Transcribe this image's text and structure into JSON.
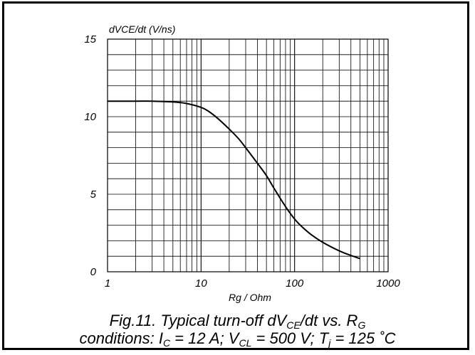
{
  "chart_data": {
    "type": "line",
    "title": "",
    "ylabel": "dVCE/dt (V/ns)",
    "xlabel": "Rg / Ohm",
    "x_scale": "log",
    "xlim": [
      1,
      1000
    ],
    "ylim": [
      0,
      15
    ],
    "x_ticks": [
      1,
      10,
      100,
      1000
    ],
    "x_tick_labels": [
      "1",
      "10",
      "100",
      "1000"
    ],
    "y_ticks": [
      0,
      5,
      10,
      15
    ],
    "y_tick_labels": [
      "0",
      "5",
      "10",
      "15"
    ],
    "grid": true,
    "legend": "none",
    "series": [
      {
        "x": [
          1,
          2,
          3,
          5,
          7,
          10,
          12,
          15,
          20,
          25,
          30,
          40,
          50,
          60,
          80,
          100,
          120,
          150,
          200,
          300,
          400,
          500
        ],
        "y": [
          11.0,
          11.0,
          11.0,
          10.95,
          10.85,
          10.6,
          10.35,
          9.9,
          9.2,
          8.6,
          8.0,
          7.0,
          6.2,
          5.4,
          4.2,
          3.4,
          2.9,
          2.4,
          1.9,
          1.35,
          1.05,
          0.85
        ]
      }
    ]
  },
  "caption": {
    "line1": {
      "prefix": "Fig.11.   Typical turn-off dV",
      "sub1": "CE",
      "mid": "/dt vs. R",
      "sub2": "G"
    },
    "line2": {
      "p1": "conditions: I",
      "s1": "C",
      "p2": " = 12 A; V",
      "s2": "CL",
      "p3": " = 500 V; T",
      "s3": "j",
      "p4": " = 125 ˚C"
    }
  },
  "colors": {
    "frame": "#000000",
    "grid": "#000000",
    "curve": "#000000",
    "background": "#ffffff"
  }
}
